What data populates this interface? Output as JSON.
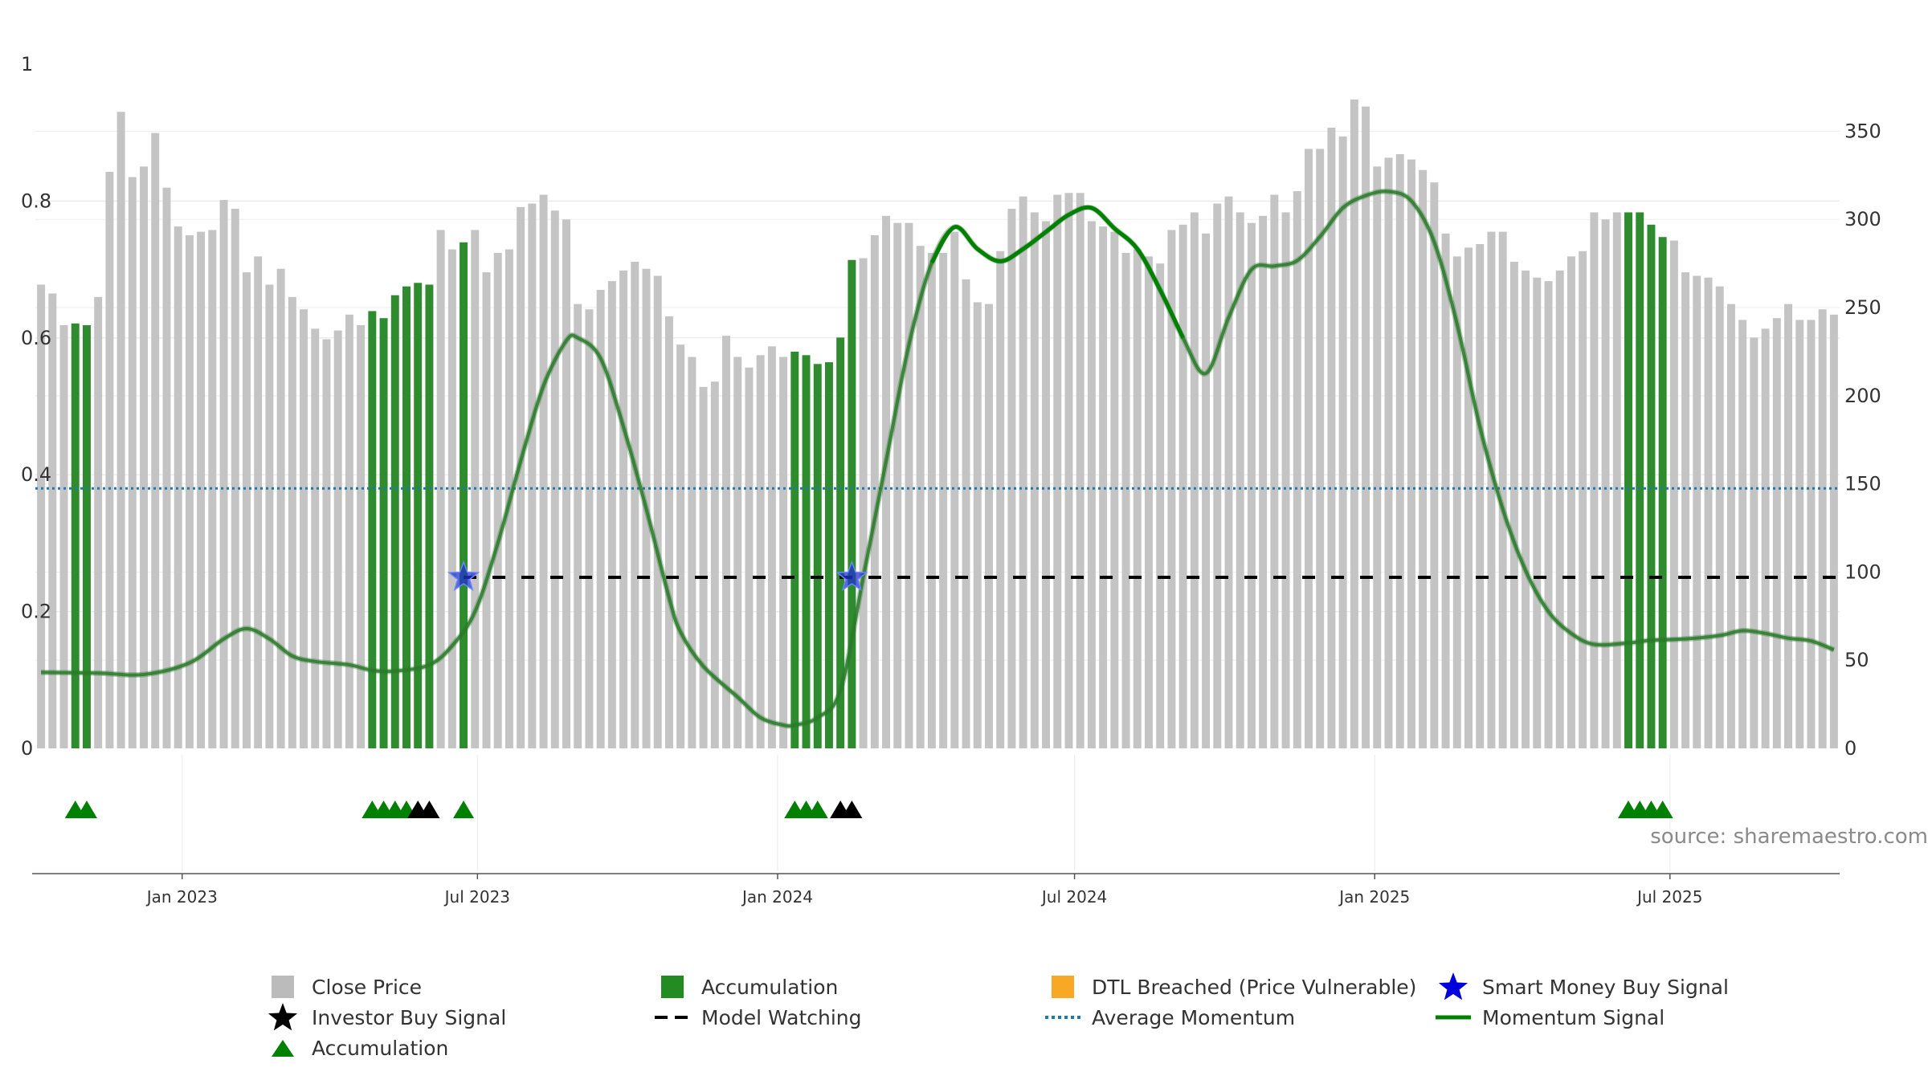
{
  "chart_data": {
    "type": "bar",
    "x_start_date": "2022-10-03",
    "x_step_days": 7,
    "x_ticks": [
      "Jan 2023",
      "Jul 2023",
      "Jan 2024",
      "Jul 2024",
      "Jan 2025",
      "Jul 2025"
    ],
    "y_left": {
      "ticks": [
        "0",
        "0.2",
        "0.4",
        "0.6",
        "0.8",
        "1"
      ],
      "range": [
        0,
        1
      ]
    },
    "y_right": {
      "ticks": [
        "0",
        "50",
        "100",
        "150",
        "200",
        "250",
        "300",
        "350"
      ],
      "range": [
        0,
        388
      ]
    },
    "close_price": [
      263,
      258,
      240,
      241,
      240,
      256,
      327,
      361,
      324,
      330,
      349,
      318,
      296,
      291,
      293,
      294,
      311,
      306,
      270,
      279,
      263,
      272,
      256,
      249,
      238,
      232,
      237,
      246,
      240,
      248,
      244,
      257,
      262,
      264,
      263,
      294,
      283,
      287,
      294,
      270,
      281,
      283,
      307,
      309,
      314,
      305,
      300,
      252,
      249,
      260,
      265,
      271,
      276,
      272,
      268,
      245,
      229,
      222,
      205,
      208,
      234,
      222,
      216,
      223,
      228,
      222,
      225,
      223,
      218,
      219,
      233,
      277,
      278,
      291,
      302,
      298,
      298,
      285,
      281,
      281,
      293,
      266,
      253,
      252,
      282,
      306,
      313,
      304,
      299,
      314,
      315,
      315,
      299,
      296,
      293,
      281,
      283,
      279,
      275,
      294,
      297,
      304,
      292,
      309,
      313,
      304,
      298,
      302,
      314,
      304,
      316,
      340,
      340,
      352,
      347,
      368,
      364,
      330,
      335,
      337,
      334,
      328,
      321,
      292,
      279,
      284,
      286,
      293,
      293,
      276,
      271,
      267,
      265,
      271,
      279,
      282,
      304,
      300,
      304,
      304,
      304,
      297,
      290,
      288,
      270,
      268,
      267,
      262,
      252,
      243,
      233,
      238,
      244,
      252,
      243,
      243,
      249,
      246
    ],
    "accumulation_bars": [
      3,
      4,
      29,
      30,
      31,
      32,
      33,
      34,
      37,
      66,
      67,
      68,
      69,
      70,
      71,
      139,
      140,
      141,
      142
    ],
    "accumulation_markers": [
      3,
      4,
      29,
      30,
      31,
      32,
      66,
      67,
      68,
      139,
      140,
      141,
      142
    ],
    "investor_buy_signals": [
      33,
      34,
      70,
      71
    ],
    "smart_money_buy_signals": [
      37,
      71
    ],
    "model_watching": {
      "from": 37,
      "level": 0.25
    },
    "average_momentum": 0.38,
    "momentum_signal": [
      [
        0,
        0.111
      ],
      [
        5,
        0.11
      ],
      [
        9,
        0.108
      ],
      [
        13,
        0.125
      ],
      [
        16,
        0.16
      ],
      [
        18,
        0.175
      ],
      [
        20,
        0.16
      ],
      [
        22,
        0.135
      ],
      [
        24,
        0.127
      ],
      [
        27,
        0.122
      ],
      [
        29,
        0.114
      ],
      [
        31,
        0.113
      ],
      [
        34,
        0.122
      ],
      [
        36,
        0.15
      ],
      [
        38,
        0.2
      ],
      [
        40,
        0.3
      ],
      [
        42,
        0.42
      ],
      [
        44,
        0.53
      ],
      [
        46,
        0.596
      ],
      [
        47,
        0.6
      ],
      [
        49,
        0.57
      ],
      [
        51,
        0.47
      ],
      [
        53,
        0.35
      ],
      [
        55,
        0.22
      ],
      [
        56,
        0.17
      ],
      [
        58,
        0.12
      ],
      [
        61,
        0.075
      ],
      [
        63,
        0.045
      ],
      [
        65,
        0.034
      ],
      [
        66,
        0.034
      ],
      [
        68,
        0.045
      ],
      [
        70,
        0.085
      ],
      [
        72,
        0.25
      ],
      [
        74,
        0.42
      ],
      [
        76,
        0.59
      ],
      [
        78,
        0.71
      ],
      [
        80,
        0.762
      ],
      [
        82,
        0.73
      ],
      [
        84,
        0.712
      ],
      [
        86,
        0.73
      ],
      [
        88,
        0.755
      ],
      [
        90,
        0.78
      ],
      [
        92,
        0.79
      ],
      [
        94,
        0.76
      ],
      [
        96,
        0.73
      ],
      [
        98,
        0.67
      ],
      [
        100,
        0.6
      ],
      [
        102,
        0.548
      ],
      [
        104,
        0.63
      ],
      [
        106,
        0.7
      ],
      [
        108,
        0.705
      ],
      [
        110,
        0.713
      ],
      [
        112,
        0.748
      ],
      [
        114,
        0.79
      ],
      [
        116,
        0.808
      ],
      [
        118,
        0.814
      ],
      [
        120,
        0.8
      ],
      [
        122,
        0.74
      ],
      [
        124,
        0.62
      ],
      [
        126,
        0.47
      ],
      [
        128,
        0.35
      ],
      [
        130,
        0.26
      ],
      [
        132,
        0.2
      ],
      [
        134,
        0.168
      ],
      [
        136,
        0.152
      ],
      [
        139,
        0.154
      ],
      [
        141,
        0.158
      ],
      [
        144,
        0.16
      ],
      [
        147,
        0.165
      ],
      [
        149,
        0.172
      ],
      [
        151,
        0.168
      ],
      [
        153,
        0.161
      ],
      [
        155,
        0.157
      ],
      [
        157,
        0.144
      ]
    ],
    "momentum_highlight_ranges": [
      [
        77,
        101
      ]
    ],
    "source": "source: sharemaestro.com",
    "legend": [
      {
        "label": "Close Price",
        "symbol": "square",
        "color": "#bbbbbb"
      },
      {
        "label": "Accumulation",
        "symbol": "square",
        "color": "#228b22"
      },
      {
        "label": "DTL Breached (Price Vulnerable)",
        "symbol": "square",
        "color": "#f9a825"
      },
      {
        "label": "Smart Money Buy Signal",
        "symbol": "star",
        "color": "#0000dd"
      },
      {
        "label": "Investor Buy Signal",
        "symbol": "star",
        "color": "#000000"
      },
      {
        "label": "Model Watching",
        "symbol": "dashed-line",
        "color": "#000000"
      },
      {
        "label": "Average Momentum",
        "symbol": "dotted-line",
        "color": "#1f77b4"
      },
      {
        "label": "Momentum Signal",
        "symbol": "line",
        "color": "#008000"
      },
      {
        "label": "Accumulation",
        "symbol": "triangle",
        "color": "#008000"
      }
    ],
    "colors": {
      "close_price": "#c4c4c4",
      "accumulation": "#2e8b2e",
      "marker_green": "#008000",
      "investor": "#000000",
      "smart_money": "#2233cc",
      "average_momentum": "#1f77b4",
      "momentum": "#2a7a2a",
      "momentum_highlight": "#008000"
    }
  }
}
